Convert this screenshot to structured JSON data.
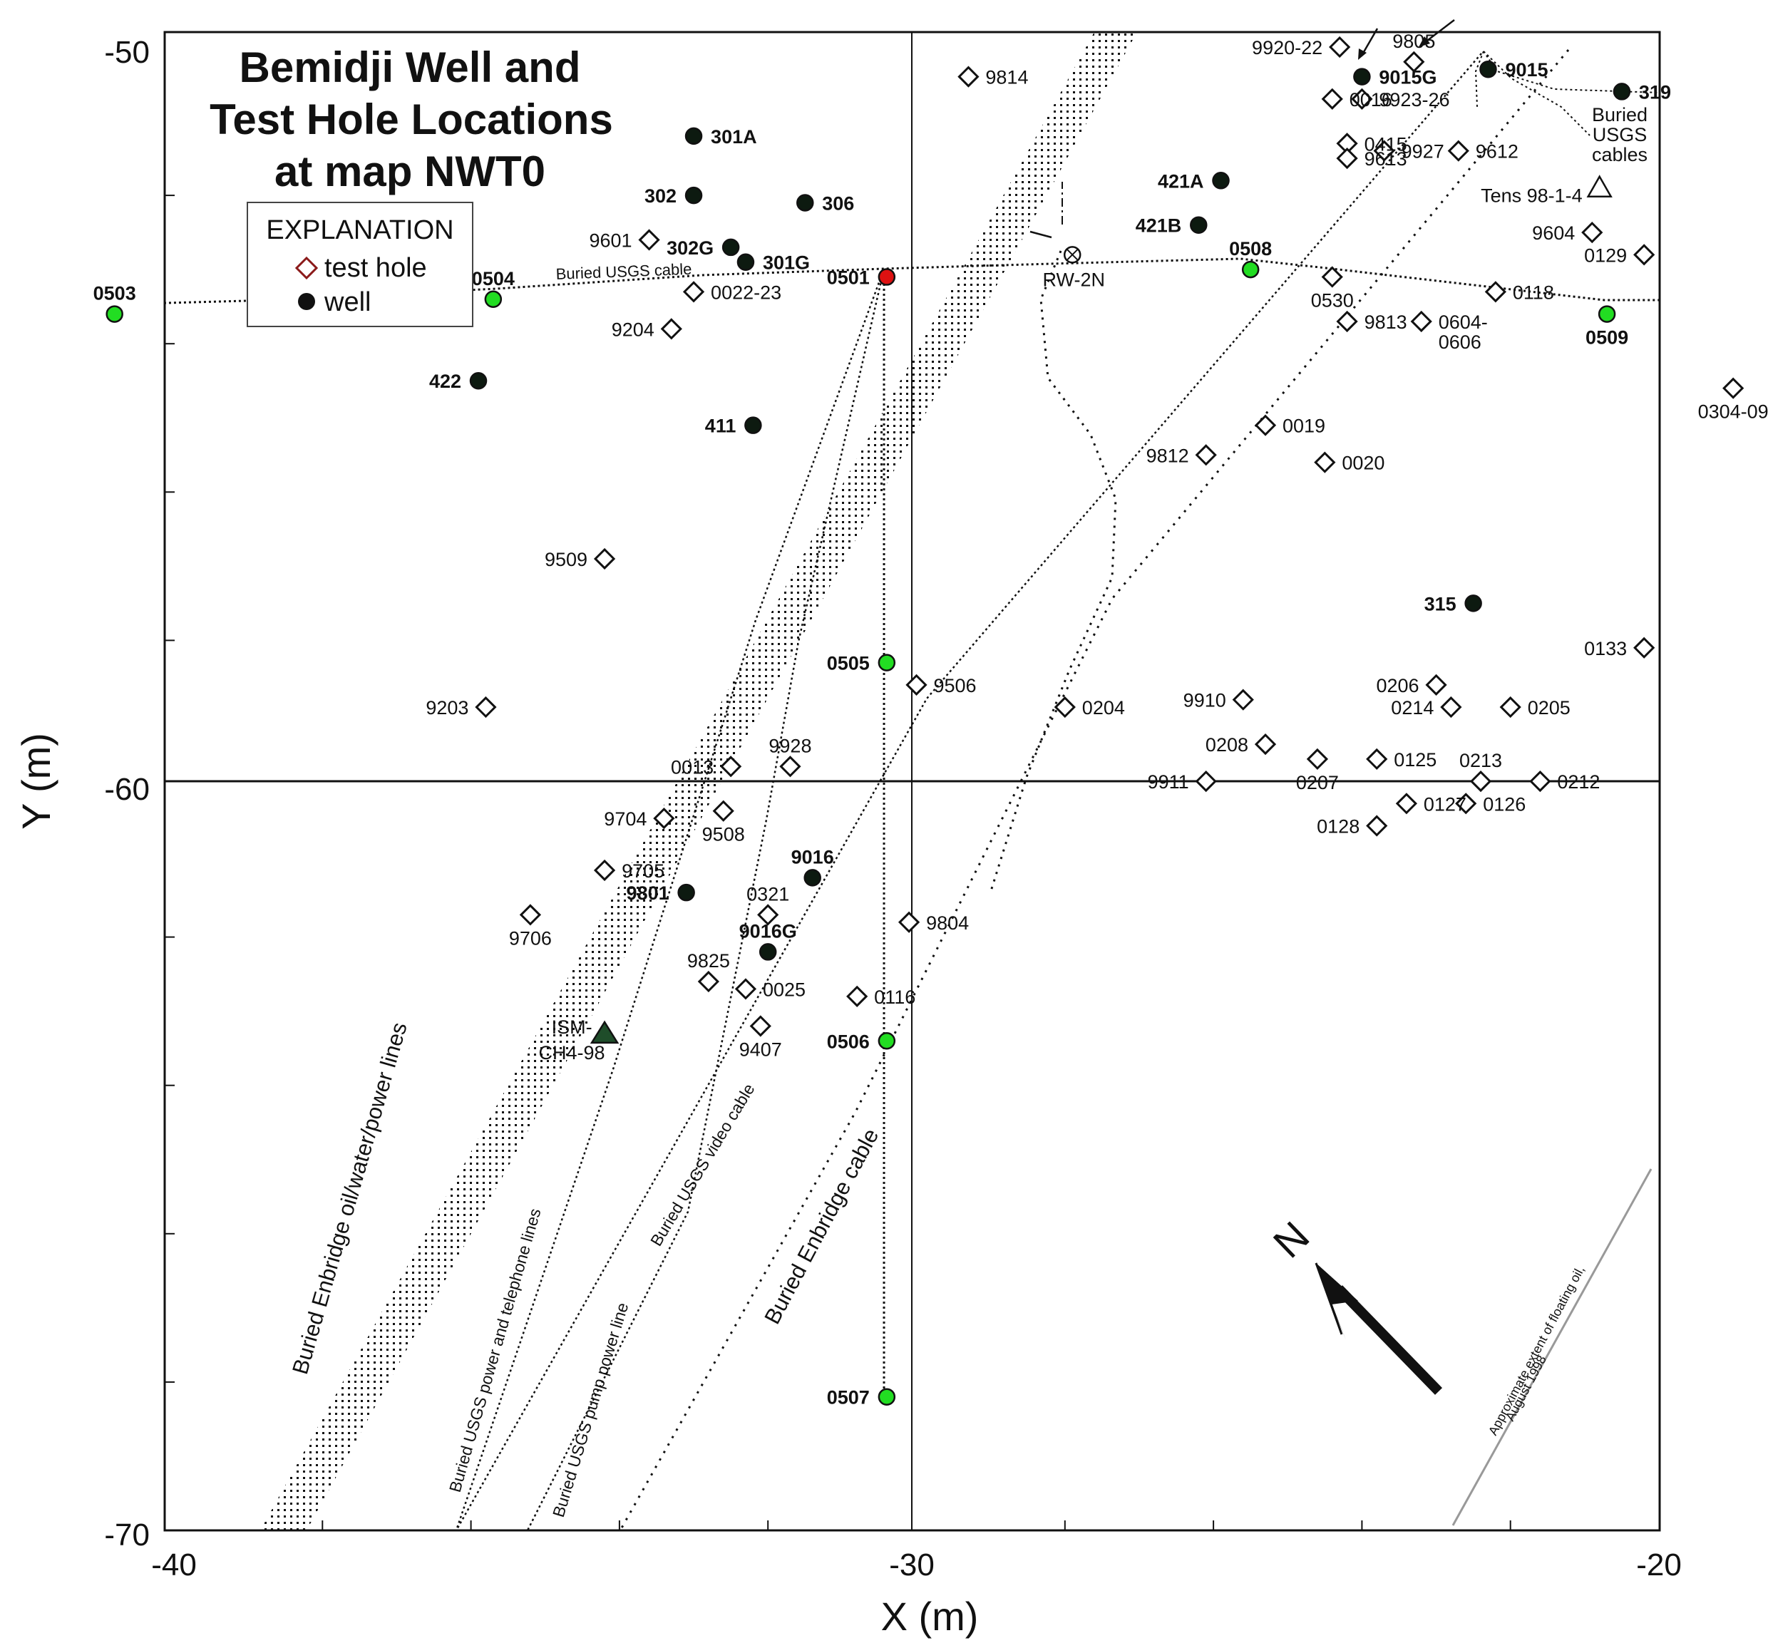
{
  "title_lines": [
    "Bemidji Well and",
    "Test Hole Locations",
    "at map NWT0"
  ],
  "legend": {
    "heading": "EXPLANATION",
    "test_hole": "test hole",
    "well": "well"
  },
  "axes": {
    "xlabel": "X (m)",
    "ylabel": "Y (m)",
    "xlim": [
      -40,
      -20
    ],
    "ylim": [
      -70,
      -50
    ],
    "x_tick_labels": [
      "-40",
      "-30",
      "-20"
    ],
    "y_tick_labels": [
      "-50",
      "-60",
      "-70"
    ]
  },
  "colors": {
    "well_black": "#0d1a10",
    "well_green": "#22dd22",
    "well_red": "#dd1111",
    "line": "#111111",
    "oil_extent": "#999999"
  },
  "chart_data": {
    "type": "scatter",
    "xlabel": "X (m)",
    "ylabel": "Y (m)",
    "xlim": [
      -40,
      -20
    ],
    "ylim": [
      -70,
      -50
    ],
    "wells_black": [
      {
        "id": "301A",
        "x": -33.0,
        "y": -51.2
      },
      {
        "id": "302",
        "x": -33.0,
        "y": -52.0
      },
      {
        "id": "306",
        "x": -31.5,
        "y": -52.1
      },
      {
        "id": "302G",
        "x": -32.5,
        "y": -52.7
      },
      {
        "id": "301G",
        "x": -32.3,
        "y": -52.9
      },
      {
        "id": "422",
        "x": -35.9,
        "y": -54.5
      },
      {
        "id": "411",
        "x": -32.2,
        "y": -55.1
      },
      {
        "id": "421A",
        "x": -25.9,
        "y": -51.8
      },
      {
        "id": "421B",
        "x": -26.2,
        "y": -52.4
      },
      {
        "id": "9015G",
        "x": -24.0,
        "y": -50.4
      },
      {
        "id": "9015",
        "x": -22.3,
        "y": -50.3
      },
      {
        "id": "319",
        "x": -20.5,
        "y": -50.6
      },
      {
        "id": "315",
        "x": -22.5,
        "y": -57.5
      },
      {
        "id": "9016",
        "x": -31.4,
        "y": -61.2
      },
      {
        "id": "9801",
        "x": -33.1,
        "y": -61.4
      },
      {
        "id": "9016G",
        "x": -32.0,
        "y": -62.2
      }
    ],
    "wells_green": [
      {
        "id": "0503",
        "x": -40.8,
        "y": -53.6
      },
      {
        "id": "0504",
        "x": -35.7,
        "y": -53.4
      },
      {
        "id": "0508",
        "x": -25.5,
        "y": -53.0
      },
      {
        "id": "0509",
        "x": -20.7,
        "y": -53.6
      },
      {
        "id": "0505",
        "x": -30.4,
        "y": -58.3
      },
      {
        "id": "0506",
        "x": -30.4,
        "y": -63.4
      },
      {
        "id": "0507",
        "x": -30.4,
        "y": -68.2
      }
    ],
    "wells_red": [
      {
        "id": "0501",
        "x": -30.4,
        "y": -53.1
      }
    ],
    "test_holes": [
      {
        "id": "9814",
        "x": -29.3,
        "y": -50.4
      },
      {
        "id": "9601",
        "x": -33.6,
        "y": -52.6
      },
      {
        "id": "0022-23",
        "x": -33.0,
        "y": -53.3
      },
      {
        "id": "9204",
        "x": -33.3,
        "y": -53.8
      },
      {
        "id": "9509",
        "x": -34.2,
        "y": -56.9
      },
      {
        "id": "9203",
        "x": -35.8,
        "y": -58.9
      },
      {
        "id": "9506",
        "x": -30.0,
        "y": -58.6
      },
      {
        "id": "0204",
        "x": -28.0,
        "y": -58.9
      },
      {
        "id": "0013",
        "x": -32.5,
        "y": -59.7
      },
      {
        "id": "9928",
        "x": -31.7,
        "y": -59.7
      },
      {
        "id": "9704",
        "x": -33.4,
        "y": -60.4
      },
      {
        "id": "9508",
        "x": -32.6,
        "y": -60.3
      },
      {
        "id": "9705",
        "x": -34.2,
        "y": -61.1
      },
      {
        "id": "9706",
        "x": -35.2,
        "y": -61.7
      },
      {
        "id": "0321",
        "x": -32.0,
        "y": -61.7
      },
      {
        "id": "9804",
        "x": -30.1,
        "y": -61.8
      },
      {
        "id": "9825",
        "x": -32.8,
        "y": -62.6
      },
      {
        "id": "0025",
        "x": -32.3,
        "y": -62.7
      },
      {
        "id": "0116",
        "x": -30.8,
        "y": -62.8
      },
      {
        "id": "9407",
        "x": -32.1,
        "y": -63.2
      },
      {
        "id": "9920-22",
        "x": -24.3,
        "y": -50.0
      },
      {
        "id": "9805",
        "x": -23.3,
        "y": -50.2
      },
      {
        "id": "0016",
        "x": -24.4,
        "y": -50.7
      },
      {
        "id": "9923-26",
        "x": -24.0,
        "y": -50.7
      },
      {
        "id": "0415",
        "x": -24.2,
        "y": -51.3
      },
      {
        "id": "9613",
        "x": -24.2,
        "y": -51.5
      },
      {
        "id": "9927",
        "x": -23.7,
        "y": -51.4
      },
      {
        "id": "9612",
        "x": -22.7,
        "y": -51.4
      },
      {
        "id": "9604",
        "x": -20.9,
        "y": -52.5
      },
      {
        "id": "0129",
        "x": -20.2,
        "y": -52.8
      },
      {
        "id": "0530",
        "x": -24.4,
        "y": -53.1
      },
      {
        "id": "0118",
        "x": -22.2,
        "y": -53.3
      },
      {
        "id": "9813",
        "x": -24.2,
        "y": -53.7
      },
      {
        "id": "0604-0606",
        "x": -23.2,
        "y": -53.7
      },
      {
        "id": "0304-09",
        "x": -19.0,
        "y": -54.6
      },
      {
        "id": "0019",
        "x": -25.3,
        "y": -55.1
      },
      {
        "id": "9812",
        "x": -26.1,
        "y": -55.5
      },
      {
        "id": "0020",
        "x": -24.5,
        "y": -55.6
      },
      {
        "id": "0133",
        "x": -20.2,
        "y": -58.1
      },
      {
        "id": "9910",
        "x": -25.6,
        "y": -58.8
      },
      {
        "id": "0206",
        "x": -23.0,
        "y": -58.6
      },
      {
        "id": "0214",
        "x": -22.8,
        "y": -58.9
      },
      {
        "id": "0205",
        "x": -22.0,
        "y": -58.9
      },
      {
        "id": "0208",
        "x": -25.3,
        "y": -59.4
      },
      {
        "id": "0207",
        "x": -24.6,
        "y": -59.6
      },
      {
        "id": "0125",
        "x": -23.8,
        "y": -59.6
      },
      {
        "id": "9911",
        "x": -26.1,
        "y": -59.9
      },
      {
        "id": "0213",
        "x": -22.4,
        "y": -59.9
      },
      {
        "id": "0212",
        "x": -21.6,
        "y": -59.9
      },
      {
        "id": "0127",
        "x": -23.4,
        "y": -60.2
      },
      {
        "id": "0126",
        "x": -22.6,
        "y": -60.2
      },
      {
        "id": "0128",
        "x": -23.8,
        "y": -60.5
      }
    ],
    "special": [
      {
        "id": "RW-2N",
        "x": -27.9,
        "y": -52.8,
        "symbol": "circle-x"
      },
      {
        "id": "Tens 98-1-4",
        "x": -20.8,
        "y": -51.9,
        "symbol": "triangle-open"
      },
      {
        "id": "ISM-CH4-98",
        "x": -34.2,
        "y": -63.3,
        "symbol": "triangle-filled"
      }
    ],
    "label_texts": {
      "0604-0606": [
        "0604-",
        "0606"
      ],
      "ISM-CH4-98": [
        "ISM-",
        "CH4-98"
      ],
      "buried_usgs_cables": [
        "Buried",
        "USGS",
        "cables"
      ]
    },
    "line_labels": {
      "usgs_cable": "Buried USGS cable",
      "enbridge_lines": "Buried Enbridge oil/water/power lines",
      "usgs_power_phone": "Buried USGS power and telephone lines",
      "usgs_pump": "Buried USGS pump power line",
      "usgs_video": "Buried USGS video cable",
      "enbridge_cable": "Buried Enbridge cable",
      "oil_extent": [
        "Approximate extent of floating oil,",
        "August 1998"
      ]
    },
    "north_label": "N"
  }
}
